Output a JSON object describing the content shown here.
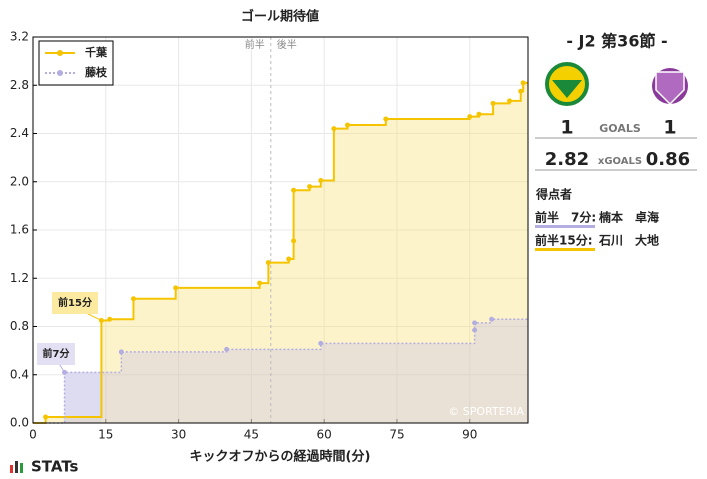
{
  "chart_data": {
    "type": "step",
    "title": "ゴール期待値",
    "x_label": "キックオフからの経過時間(分)",
    "xlim": [
      0,
      102
    ],
    "xticks": [
      0,
      15,
      30,
      45,
      60,
      75,
      90
    ],
    "ylim": [
      0,
      3.2
    ],
    "yticks": [
      {
        "value": 0,
        "label": "0.0"
      },
      0.4,
      0.8,
      1.2,
      1.6,
      {
        "value": 2,
        "label": "2.0"
      },
      2.4,
      2.8,
      3.2
    ],
    "grid": true,
    "legend": "upper left",
    "series": [
      {
        "name": "千葉",
        "color": "#f5c400",
        "fill": "#fbe07a",
        "style": "solid",
        "x": [
          2.6,
          14.1,
          15.8,
          20.7,
          29.4,
          46.7,
          48.5,
          52.7,
          53.7,
          53.7,
          57,
          59.3,
          62,
          64.8,
          72.7,
          90,
          91.9,
          94.8,
          98.2,
          100.5,
          101
        ],
        "values": [
          0.05,
          0.85,
          0.86,
          1.03,
          1.12,
          1.16,
          1.33,
          1.36,
          1.51,
          1.93,
          1.96,
          2.01,
          2.44,
          2.47,
          2.52,
          2.54,
          2.56,
          2.65,
          2.67,
          2.75,
          2.82
        ]
      },
      {
        "name": "藤枝",
        "color": "#b3aee2",
        "fill": "#cbc6e6",
        "style": "dotted",
        "x": [
          6.5,
          18.2,
          39.9,
          59.3,
          91,
          91,
          94.5
        ],
        "values": [
          0.42,
          0.59,
          0.61,
          0.66,
          0.77,
          0.83,
          0.86
        ]
      }
    ],
    "halftime": {
      "x": 49,
      "labels": [
        "前半",
        "後半"
      ]
    },
    "annotations": [
      "前15分",
      "前7分"
    ],
    "watermark": "© SPORTERIA"
  },
  "match": {
    "round": "-  J2 第36節  -",
    "goals_label": "GOALS",
    "xg_label": "xGOALS",
    "home_goals": "1",
    "away_goals": "1",
    "home_xg": "2.82",
    "away_xg": "0.86",
    "scorers_title": "得点者",
    "scorers": [
      {
        "time": "前半　7分:",
        "name": "楠本　卓海"
      },
      {
        "time": "前半15分:",
        "name": "石川　大地"
      }
    ],
    "brand": "STATs"
  }
}
